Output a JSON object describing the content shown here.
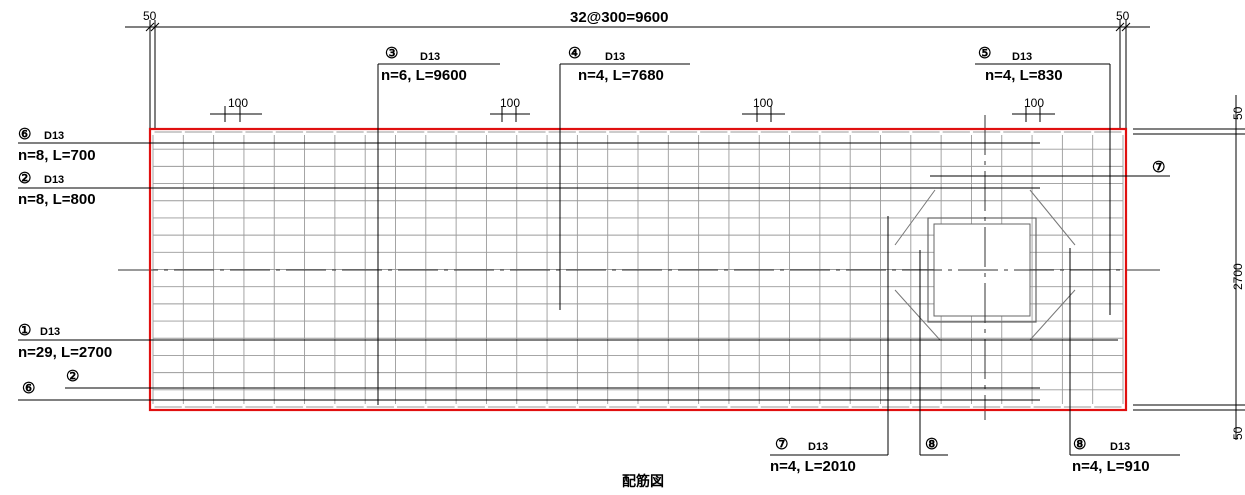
{
  "dimensions": {
    "top_total": "32@300=9600",
    "top_left_edge": "50",
    "top_right_edge": "50",
    "spacing_marks": [
      "100",
      "100",
      "100",
      "100"
    ],
    "right_top": "50",
    "right_middle": "2700",
    "right_bottom": "50"
  },
  "callouts": [
    {
      "id": "callout-1",
      "mark": "①",
      "bar": "D13",
      "spec": "n=29, L=2700"
    },
    {
      "id": "callout-2",
      "mark": "②",
      "bar": "D13",
      "spec": "n=8, L=800"
    },
    {
      "id": "callout-3",
      "mark": "③",
      "bar": "D13",
      "spec": "n=6, L=9600"
    },
    {
      "id": "callout-4",
      "mark": "④",
      "bar": "D13",
      "spec": "n=4, L=7680"
    },
    {
      "id": "callout-5",
      "mark": "⑤",
      "bar": "D13",
      "spec": "n=4, L=830"
    },
    {
      "id": "callout-6",
      "mark": "⑥",
      "bar": "D13",
      "spec": "n=8, L=700"
    },
    {
      "id": "callout-7",
      "mark": "⑦",
      "bar": "D13",
      "spec": "n=4, L=2010"
    },
    {
      "id": "callout-8",
      "mark": "⑧",
      "bar": "D13",
      "spec": "n=4, L=910"
    }
  ],
  "extra_marks": {
    "left_bottom_6": "⑥",
    "left_bottom_2": "②",
    "right_7": "⑦",
    "bottom_8": "⑧"
  },
  "caption": "配筋図",
  "colors": {
    "outline": "#e01010",
    "grid": "#9a9a9a",
    "ink": "#000000"
  }
}
